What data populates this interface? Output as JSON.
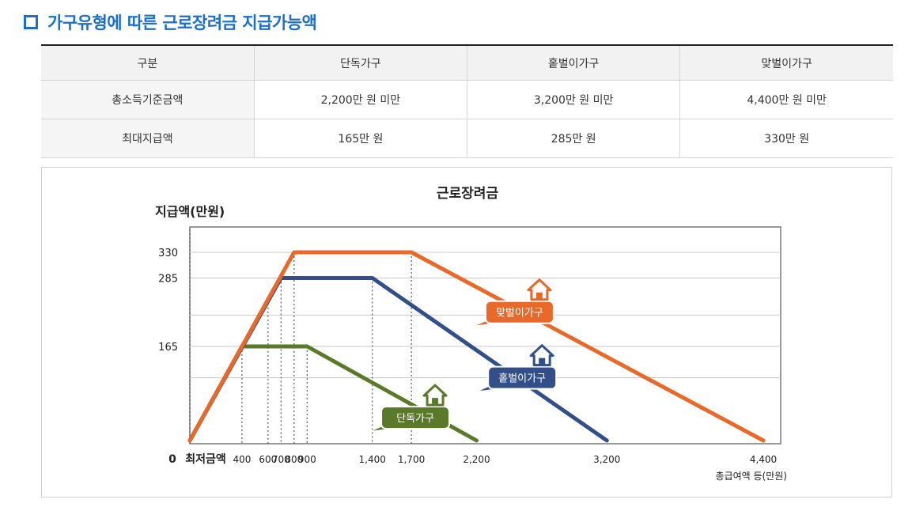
{
  "page": {
    "title": "가구유형에 따른 근로장려금 지급가능액"
  },
  "table": {
    "headers": [
      "구분",
      "단독가구",
      "홑벌이가구",
      "맞벌이가구"
    ],
    "rows": [
      {
        "label": "총소득기준금액",
        "values": [
          "2,200만 원 미만",
          "3,200만 원 미만",
          "4,400만 원 미만"
        ]
      },
      {
        "label": "최대지급액",
        "values": [
          "165만 원",
          "285만 원",
          "330만 원"
        ]
      }
    ]
  },
  "colors": {
    "accent": "#1b6fc9",
    "single": "#5a7a2a",
    "single_earner": "#334f8a",
    "dual_earner": "#e8692a"
  },
  "icons": [
    "square-bullet-icon",
    "house-icon"
  ],
  "chart_data": {
    "type": "line",
    "title": "근로장려금",
    "ylabel": "지급액(만원)",
    "xlabel": "총급여액 등(만원)",
    "x_origin_label": "최저금액",
    "y_origin_label": "0",
    "xlim": [
      0,
      4400
    ],
    "ylim": [
      0,
      330
    ],
    "x_ticks": [
      400,
      600,
      700,
      800,
      900,
      1400,
      1700,
      2200,
      3200,
      4400
    ],
    "x_tick_labels": [
      "400",
      "600",
      "700",
      "800",
      "900",
      "1,400",
      "1,700",
      "2,200",
      "3,200",
      "4,400"
    ],
    "y_ticks": [
      165,
      285,
      330
    ],
    "y_tick_labels": [
      "165",
      "285",
      "330"
    ],
    "grid": "horizontal",
    "series": [
      {
        "name": "단독가구",
        "key": "single",
        "x": [
          0,
          400,
          900,
          2200
        ],
        "y": [
          0,
          165,
          165,
          0
        ],
        "label_at": [
          1730,
          40
        ]
      },
      {
        "name": "홑벌이가구",
        "key": "single_earner",
        "x": [
          0,
          700,
          1400,
          3200
        ],
        "y": [
          0,
          285,
          285,
          0
        ],
        "label_at": [
          2550,
          110
        ]
      },
      {
        "name": "맞벌이가구",
        "key": "dual_earner",
        "x": [
          0,
          800,
          1700,
          4400
        ],
        "y": [
          0,
          330,
          330,
          0
        ],
        "label_at": [
          2530,
          225
        ]
      }
    ]
  }
}
